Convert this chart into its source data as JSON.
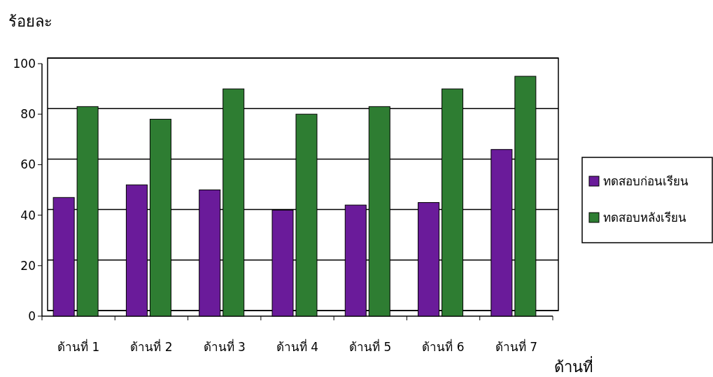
{
  "chart_data": {
    "type": "bar",
    "ylabel": "ร้อยละ",
    "xlabel": "ด้านที่",
    "categories": [
      "ด้านที่ 1",
      "ด้านที่ 2",
      "ด้านที่ 3",
      "ด้านที่ 4",
      "ด้านที่ 5",
      "ด้านที่ 6",
      "ด้านที่ 7"
    ],
    "series": [
      {
        "name": "ทดสอบก่อนเรียน",
        "color": "#6a1b9a",
        "values": [
          47,
          52,
          50,
          42,
          44,
          45,
          66
        ]
      },
      {
        "name": "ทดสอบหลังเรียน",
        "color": "#2e7d32",
        "values": [
          83,
          78,
          90,
          80,
          83,
          90,
          95
        ]
      }
    ],
    "ylim": [
      0,
      100
    ],
    "yticks": [
      0,
      20,
      40,
      60,
      80,
      100
    ],
    "grid": "y",
    "legend": "right"
  }
}
